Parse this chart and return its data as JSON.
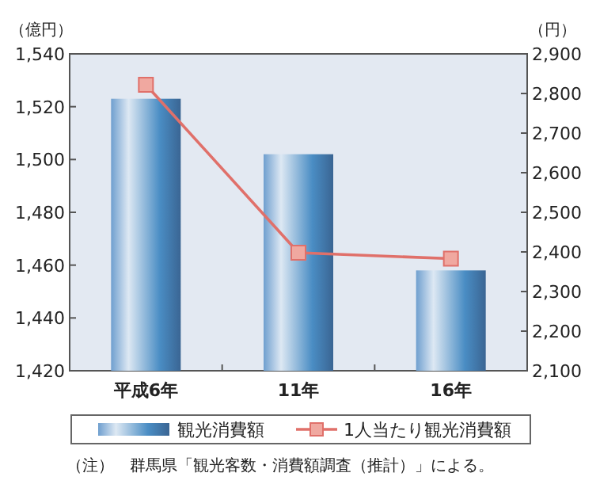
{
  "chart_data": {
    "type": "bar",
    "ylabel": "（億円）",
    "y2label": "（円）",
    "categories": [
      "平成6年",
      "11年",
      "16年"
    ],
    "series": [
      {
        "name": "観光消費額",
        "color": "#4a86bd",
        "values": [
          1523,
          1502,
          1458
        ]
      },
      {
        "name": "1人当たり観光消費額",
        "type": "line",
        "axis": "y2",
        "color": "#e0706a",
        "marker": "square",
        "values": [
          2822,
          2398,
          2383
        ]
      }
    ],
    "ylim": [
      1420,
      1540
    ],
    "yticks": [
      {
        "value": 1420,
        "label": "1,420"
      },
      {
        "value": 1440,
        "label": "1,440"
      },
      {
        "value": 1460,
        "label": "1,460"
      },
      {
        "value": 1480,
        "label": "1,480"
      },
      {
        "value": 1500,
        "label": "1,500"
      },
      {
        "value": 1520,
        "label": "1,520"
      },
      {
        "value": 1540,
        "label": "1,540"
      }
    ],
    "y2lim": [
      2100,
      2900
    ],
    "y2ticks": [
      {
        "value": 2100,
        "label": "2,100"
      },
      {
        "value": 2200,
        "label": "2,200"
      },
      {
        "value": 2300,
        "label": "2,300"
      },
      {
        "value": 2400,
        "label": "2,400"
      },
      {
        "value": 2500,
        "label": "2,500"
      },
      {
        "value": 2600,
        "label": "2,600"
      },
      {
        "value": 2700,
        "label": "2,700"
      },
      {
        "value": 2800,
        "label": "2,800"
      },
      {
        "value": 2900,
        "label": "2,900"
      }
    ],
    "legend": "bottom",
    "grid": false,
    "annotations": [
      "（注）　群馬県「観光客数・消費額調査（推計）」による。"
    ]
  }
}
